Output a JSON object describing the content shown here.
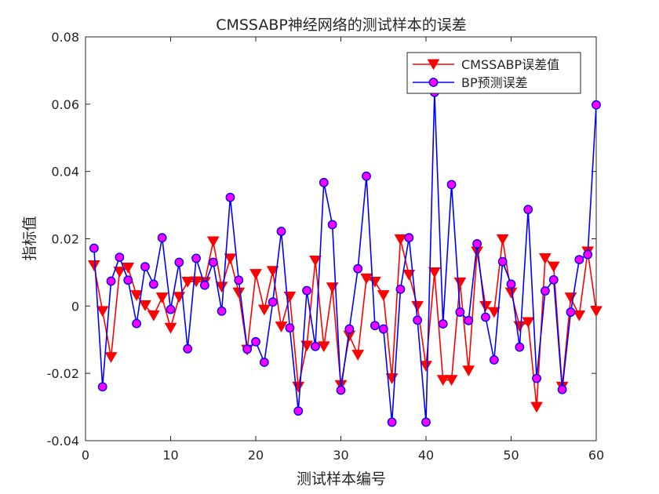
{
  "chart_data": {
    "type": "line",
    "title": "CMSSABP神经网络的测试样本的误差",
    "xlabel": "测试样本编号",
    "ylabel": "指标值",
    "xlim": [
      0,
      60
    ],
    "ylim": [
      -0.04,
      0.08
    ],
    "x_ticks": [
      0,
      10,
      20,
      30,
      40,
      50,
      60
    ],
    "x_tick_labels": [
      "0",
      "10",
      "20",
      "30",
      "40",
      "50",
      "60"
    ],
    "y_ticks": [
      -0.04,
      -0.02,
      0,
      0.02,
      0.04,
      0.06,
      0.08
    ],
    "y_tick_labels": [
      "-0.04",
      "-0.02",
      "0",
      "0.02",
      "0.04",
      "0.06",
      "0.08"
    ],
    "grid": false,
    "legend_position": "top-right",
    "x": [
      1,
      2,
      3,
      4,
      5,
      6,
      7,
      8,
      9,
      10,
      11,
      12,
      13,
      14,
      15,
      16,
      17,
      18,
      19,
      20,
      21,
      22,
      23,
      24,
      25,
      26,
      27,
      28,
      29,
      30,
      31,
      32,
      33,
      34,
      35,
      36,
      37,
      38,
      39,
      40,
      41,
      42,
      43,
      44,
      45,
      46,
      47,
      48,
      49,
      50,
      51,
      52,
      53,
      54,
      55,
      56,
      57,
      58,
      59,
      60
    ],
    "series": [
      {
        "name": "CMSSABP误差值",
        "color": "#ff0000",
        "marker": "triangle-down",
        "values": [
          0.0121,
          -0.0015,
          -0.0152,
          0.0102,
          0.0114,
          0.0032,
          0.0002,
          -0.0028,
          0.0025,
          -0.0065,
          0.0027,
          0.0072,
          0.0073,
          0.0071,
          0.0192,
          0.0057,
          0.0141,
          0.004,
          -0.013,
          0.0095,
          -0.0011,
          0.0104,
          -0.0061,
          0.0028,
          -0.024,
          -0.0118,
          0.0135,
          -0.012,
          0.0055,
          -0.0235,
          -0.0088,
          -0.0145,
          0.0082,
          0.0072,
          0.0032,
          -0.0215,
          0.0198,
          0.0093,
          0.0,
          -0.0178,
          0.01,
          -0.022,
          -0.022,
          0.007,
          -0.0192,
          0.0162,
          0.0,
          -0.0018,
          0.0198,
          0.004,
          -0.006,
          -0.0048,
          -0.03,
          0.0142,
          0.0117,
          -0.024,
          0.0025,
          -0.0028,
          0.0162,
          -0.0015
        ]
      },
      {
        "name": "BP预测误差",
        "color": "#0000ff",
        "marker": "circle",
        "marker_fill": "#ff00ff",
        "values": [
          0.0172,
          -0.024,
          0.0074,
          0.0145,
          0.0077,
          -0.0052,
          0.0117,
          0.0065,
          0.0203,
          -0.001,
          0.013,
          -0.0127,
          0.0142,
          0.0062,
          0.013,
          -0.0015,
          0.0323,
          0.0077,
          -0.0128,
          -0.0106,
          -0.0167,
          0.0012,
          0.0222,
          -0.0065,
          -0.0312,
          0.0046,
          -0.012,
          0.0367,
          0.0242,
          -0.025,
          -0.0068,
          0.0111,
          0.0386,
          -0.0058,
          -0.0068,
          -0.0345,
          0.005,
          0.0203,
          -0.0042,
          -0.0345,
          0.0635,
          -0.0053,
          0.0361,
          -0.0018,
          -0.0043,
          0.0185,
          -0.0033,
          -0.016,
          0.0132,
          0.0065,
          -0.0122,
          0.0287,
          -0.0215,
          0.0045,
          0.0078,
          -0.0248,
          -0.0018,
          0.0138,
          0.0153,
          0.0598
        ]
      }
    ]
  }
}
